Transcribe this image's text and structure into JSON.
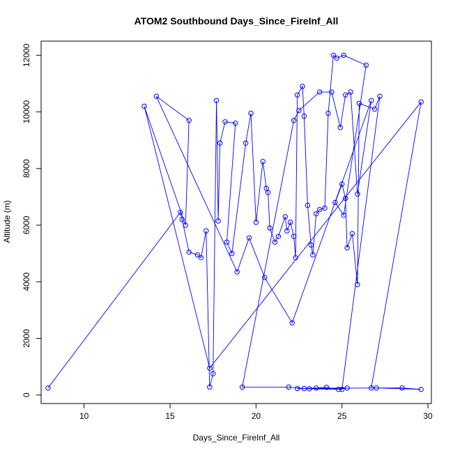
{
  "chart_data": {
    "type": "line",
    "title": "ATOM2 Southbound Days_Since_FireInf_All",
    "xlabel": "Days_Since_FireInf_All",
    "ylabel": "Altitude (m)",
    "xlim": [
      7.5,
      30.2
    ],
    "ylim": [
      -300,
      12500
    ],
    "xticks": [
      10,
      15,
      20,
      25,
      30
    ],
    "yticks": [
      0,
      2000,
      4000,
      6000,
      8000,
      10000,
      12000
    ],
    "series": [
      {
        "color": "#0000ff",
        "marker": "open-circle",
        "points": [
          [
            7.9,
            250
          ],
          [
            15.6,
            6450
          ],
          [
            15.7,
            6200
          ],
          [
            16.1,
            5050
          ],
          [
            16.6,
            4950
          ],
          [
            16.8,
            4850
          ],
          [
            17.1,
            5800
          ],
          [
            17.3,
            280
          ],
          [
            17.5,
            750
          ],
          [
            17.7,
            10400
          ],
          [
            17.8,
            6150
          ],
          [
            17.9,
            8900
          ],
          [
            18.2,
            9650
          ],
          [
            18.8,
            9600
          ],
          [
            18.3,
            5400
          ],
          [
            18.6,
            5000
          ],
          [
            19.4,
            8900
          ],
          [
            19.7,
            9950
          ],
          [
            20.0,
            6100
          ],
          [
            20.4,
            8250
          ],
          [
            20.6,
            7300
          ],
          [
            20.7,
            7150
          ],
          [
            20.8,
            5900
          ],
          [
            21.1,
            5400
          ],
          [
            21.3,
            5600
          ],
          [
            21.7,
            6300
          ],
          [
            21.8,
            5800
          ],
          [
            22.0,
            6100
          ],
          [
            22.2,
            5600
          ],
          [
            22.3,
            4850
          ],
          [
            22.4,
            10600
          ],
          [
            22.7,
            10900
          ],
          [
            22.8,
            9850
          ],
          [
            23.0,
            6700
          ],
          [
            23.2,
            5300
          ],
          [
            23.3,
            4950
          ],
          [
            23.5,
            6400
          ],
          [
            23.7,
            6550
          ],
          [
            24.0,
            6600
          ],
          [
            24.2,
            9950
          ],
          [
            24.5,
            12000
          ],
          [
            24.7,
            11900
          ],
          [
            25.1,
            12000
          ],
          [
            26.4,
            11650
          ],
          [
            25.1,
            6350
          ],
          [
            24.6,
            6800
          ],
          [
            25.0,
            7450
          ],
          [
            25.2,
            6950
          ],
          [
            25.3,
            5200
          ],
          [
            25.6,
            5700
          ],
          [
            25.9,
            3900
          ],
          [
            26.0,
            10300
          ],
          [
            26.9,
            10100
          ],
          [
            27.2,
            10550
          ],
          [
            25.0,
            200
          ],
          [
            23.1,
            220
          ],
          [
            21.9,
            280
          ],
          [
            19.2,
            280
          ],
          [
            22.2,
            9700
          ],
          [
            22.5,
            10050
          ],
          [
            23.7,
            10700
          ],
          [
            24.4,
            10700
          ],
          [
            24.9,
            9450
          ],
          [
            25.2,
            10600
          ],
          [
            25.5,
            10700
          ],
          [
            25.9,
            7100
          ],
          [
            26.7,
            10400
          ],
          [
            22.1,
            2550
          ],
          [
            20.5,
            4150
          ],
          [
            19.6,
            5550
          ],
          [
            18.9,
            4350
          ],
          [
            14.2,
            10550
          ],
          [
            16.1,
            9700
          ],
          [
            15.9,
            6000
          ],
          [
            13.5,
            10200
          ],
          [
            17.3,
            950
          ],
          [
            29.6,
            10350
          ],
          [
            26.7,
            250
          ],
          [
            28.5,
            250
          ],
          [
            29.6,
            200
          ],
          [
            27.0,
            250
          ],
          [
            22.8,
            230
          ],
          [
            23.5,
            250
          ],
          [
            24.1,
            270
          ],
          [
            24.8,
            200
          ],
          [
            25.3,
            250
          ],
          [
            22.4,
            230
          ]
        ]
      }
    ]
  }
}
